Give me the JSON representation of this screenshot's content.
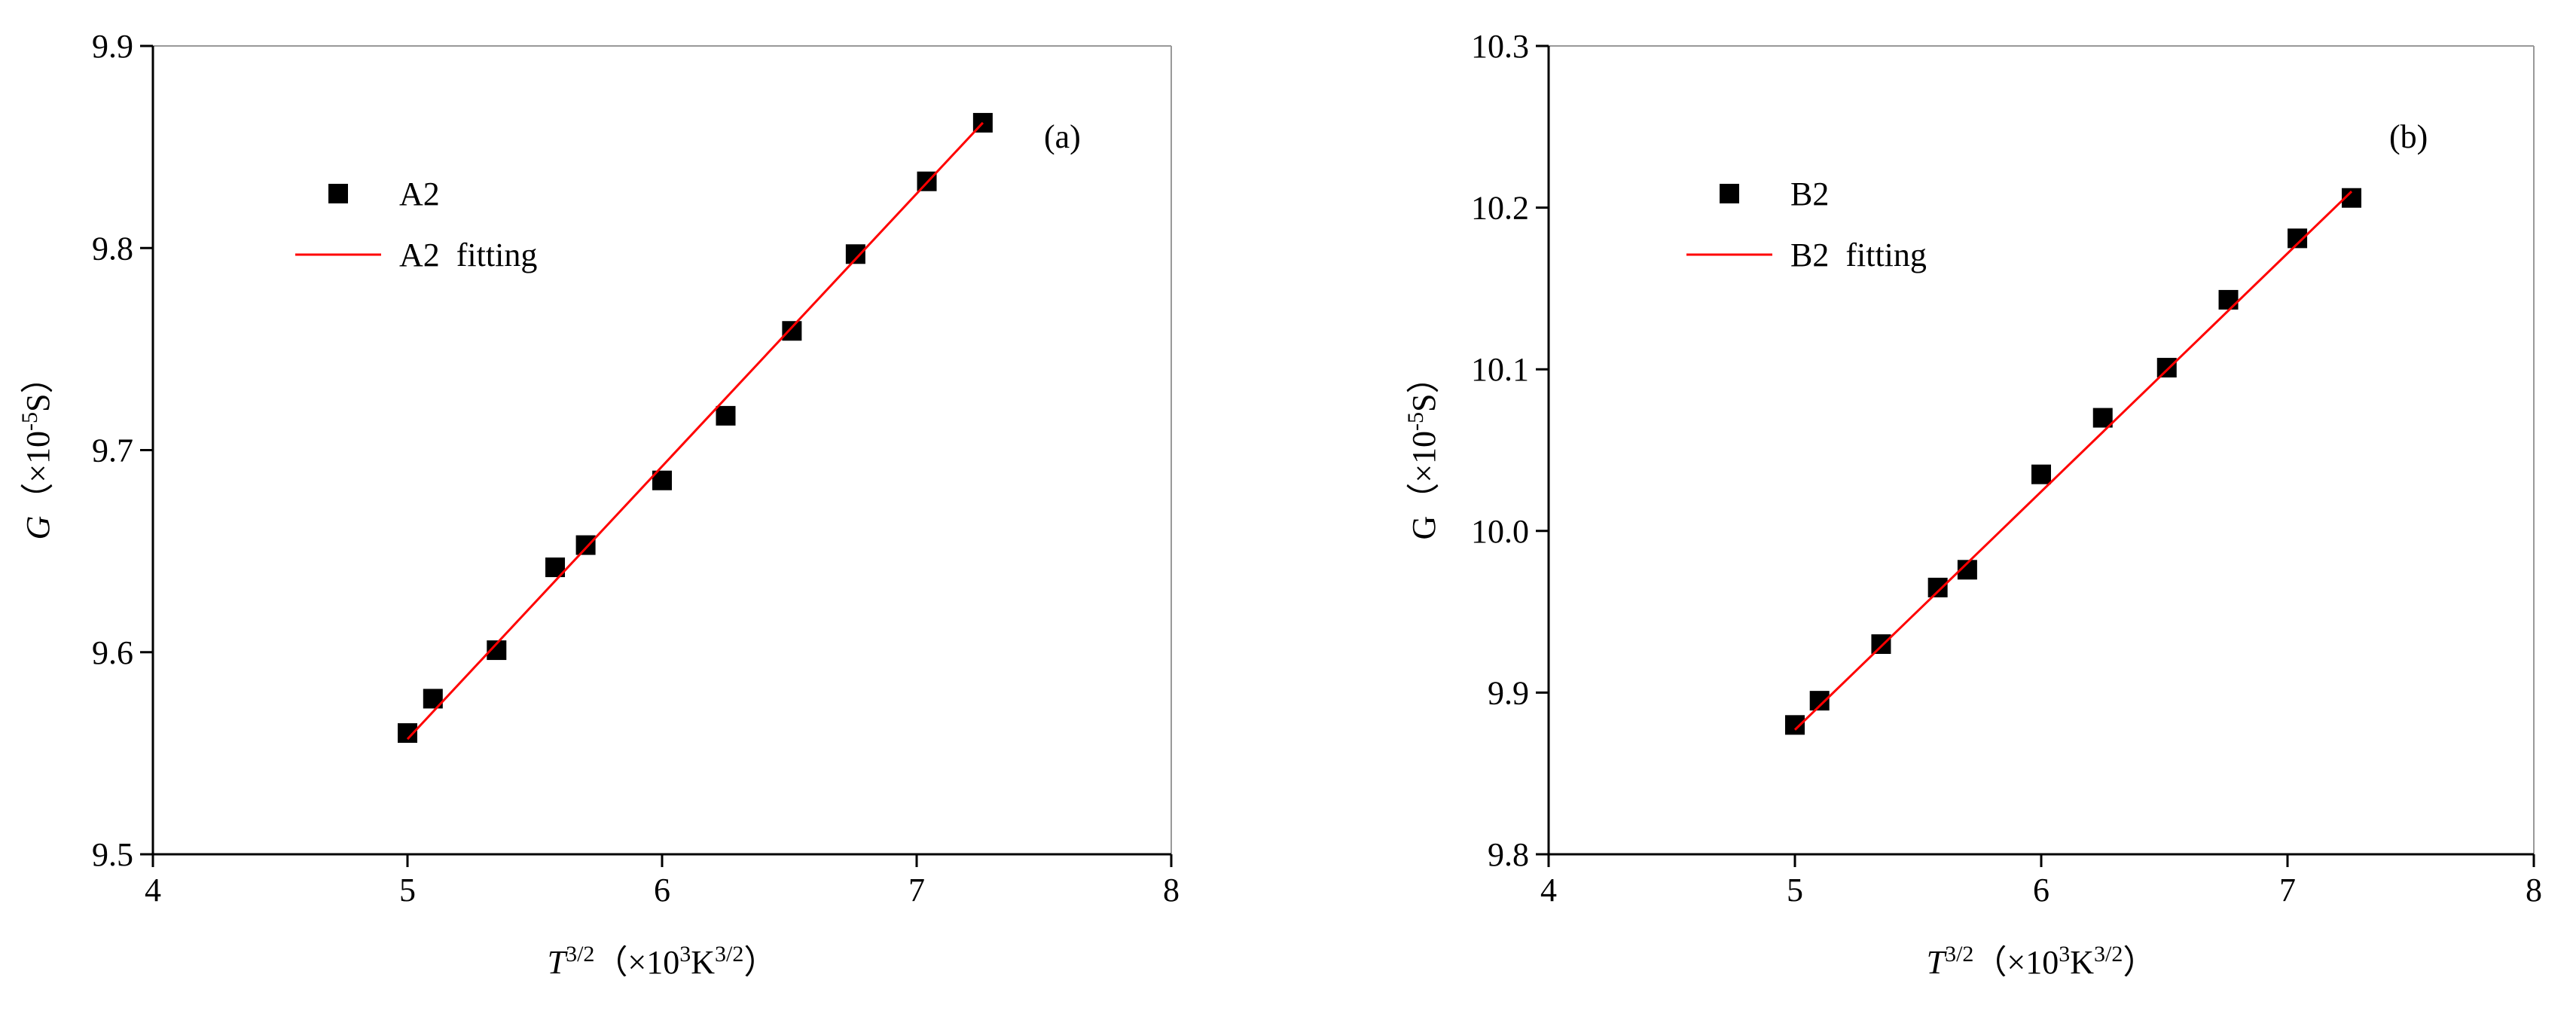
{
  "chart_data": [
    {
      "type": "scatter",
      "annotation": "(a)",
      "xlabel": [
        {
          "text": "T",
          "italic": true
        },
        {
          "text": "3/2",
          "sup": true
        },
        {
          "text": "（×10"
        },
        {
          "text": "3",
          "sup": true
        },
        {
          "text": "K"
        },
        {
          "text": "3/2",
          "sup": true
        },
        {
          "text": "）"
        }
      ],
      "ylabel": [
        {
          "text": "G",
          "italic": true
        },
        {
          "text": "（×10"
        },
        {
          "text": "-5",
          "sup": true
        },
        {
          "text": "S）"
        }
      ],
      "xlim": [
        4,
        8
      ],
      "xticks": [
        4,
        5,
        6,
        7,
        8
      ],
      "ylim": [
        9.5,
        9.9
      ],
      "yticks": [
        9.5,
        9.6,
        9.7,
        9.8,
        9.9
      ],
      "series": [
        {
          "name": "A2",
          "kind": "marker",
          "color": "#000000",
          "x": [
            5.0,
            5.1,
            5.35,
            5.58,
            5.7,
            6.0,
            6.25,
            6.51,
            6.76,
            7.04,
            7.26
          ],
          "values": [
            9.56,
            9.577,
            9.601,
            9.642,
            9.653,
            9.685,
            9.717,
            9.759,
            9.797,
            9.833,
            9.862
          ]
        },
        {
          "name": "A2  fitting",
          "kind": "line",
          "color": "#ff0000",
          "x": [
            5.0,
            7.26
          ],
          "values": [
            9.557,
            9.862
          ]
        }
      ]
    },
    {
      "type": "scatter",
      "annotation": "(b)",
      "xlabel": [
        {
          "text": "T",
          "italic": true
        },
        {
          "text": "3/2",
          "sup": true
        },
        {
          "text": "（×10"
        },
        {
          "text": "3",
          "sup": true
        },
        {
          "text": "K"
        },
        {
          "text": "3/2",
          "sup": true
        },
        {
          "text": "）"
        }
      ],
      "ylabel": [
        {
          "text": "G"
        },
        {
          "text": "（×10"
        },
        {
          "text": "-5",
          "sup": true
        },
        {
          "text": "S）"
        }
      ],
      "xlim": [
        4,
        8
      ],
      "xticks": [
        4,
        5,
        6,
        7,
        8
      ],
      "ylim": [
        9.8,
        10.3
      ],
      "yticks": [
        9.8,
        9.9,
        {
          "value": 10,
          "label": "10.0"
        },
        10.1,
        10.2,
        10.3
      ],
      "series": [
        {
          "name": "B2",
          "kind": "marker",
          "color": "#000000",
          "x": [
            5.0,
            5.1,
            5.35,
            5.58,
            5.7,
            6.0,
            6.25,
            6.51,
            6.76,
            7.04,
            7.26
          ],
          "values": [
            9.88,
            9.895,
            9.93,
            9.965,
            9.976,
            10.035,
            10.07,
            10.101,
            10.143,
            10.181,
            10.206
          ]
        },
        {
          "name": "B2  fitting",
          "kind": "line",
          "color": "#ff0000",
          "x": [
            5.0,
            7.26
          ],
          "values": [
            9.877,
            10.21
          ]
        }
      ]
    }
  ]
}
